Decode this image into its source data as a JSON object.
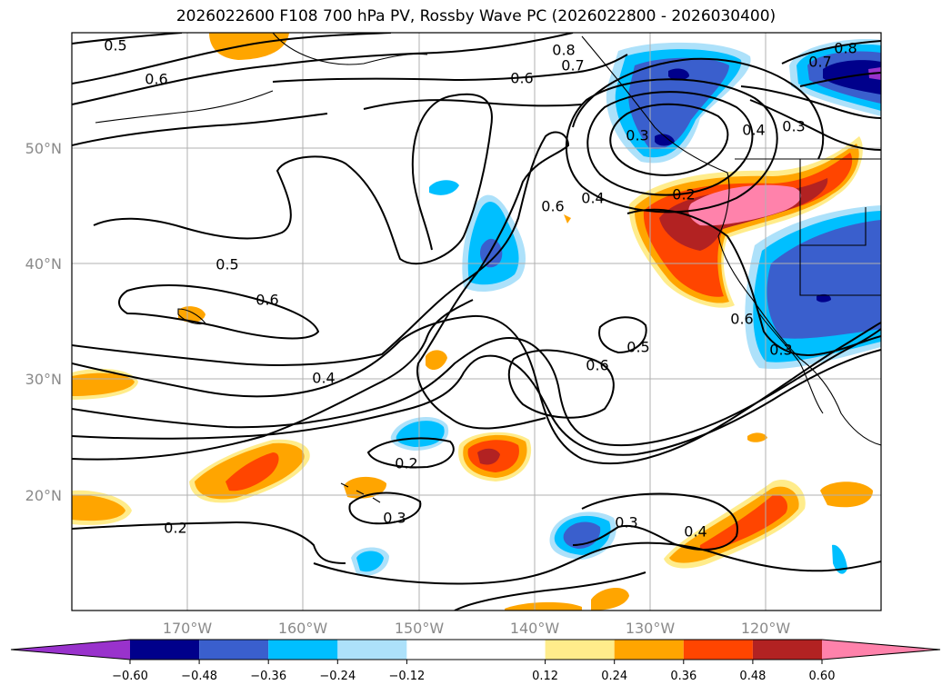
{
  "chart_data": {
    "type": "contour-map",
    "title": "2026022600 F108 700 hPa PV, Rossby Wave PC (2026022800 - 2026030400)",
    "xlabel": "",
    "ylabel": "",
    "lon_range": [
      -180,
      -110
    ],
    "lat_range": [
      10,
      60
    ],
    "x_ticks": [
      -170,
      -160,
      -150,
      -140,
      -130,
      -120
    ],
    "x_tick_labels": [
      "170°W",
      "160°W",
      "150°W",
      "140°W",
      "130°W",
      "120°W"
    ],
    "y_ticks": [
      20,
      30,
      40,
      50
    ],
    "y_tick_labels": [
      "20°N",
      "30°N",
      "40°N",
      "50°N"
    ],
    "grid": true,
    "colorbar": {
      "orientation": "horizontal",
      "extend": "both",
      "levels": [
        -0.72,
        -0.6,
        -0.48,
        -0.36,
        -0.24,
        -0.12,
        0.12,
        0.24,
        0.36,
        0.48,
        0.6,
        0.72
      ],
      "colors": [
        "#9932CC",
        "#00008B",
        "#3A5FCD",
        "#00BFFF",
        "#ADE1FA",
        "#FFFFFF",
        "#FFEC8B",
        "#FFA500",
        "#FF4500",
        "#B22222",
        "#FF82AB"
      ],
      "tick_values": [
        -0.6,
        -0.48,
        -0.36,
        -0.24,
        -0.12,
        0.12,
        0.24,
        0.36,
        0.48,
        0.6
      ],
      "tick_labels": [
        "−0.60",
        "−0.48",
        "−0.36",
        "−0.24",
        "−0.12",
        "0.12",
        "0.24",
        "0.36",
        "0.48",
        "0.60"
      ]
    },
    "contour_labels": [
      {
        "text": "0.5",
        "lon": -173.9,
        "lat": 59.1
      },
      {
        "text": "0.6",
        "lon": -170.8,
        "lat": 56.0
      },
      {
        "text": "0.6",
        "lon": -139.0,
        "lat": 56.1
      },
      {
        "text": "0.8",
        "lon": -133.0,
        "lat": 58.6
      },
      {
        "text": "0.7",
        "lon": -132.8,
        "lat": 57.7
      },
      {
        "text": "0.8",
        "lon": -113.2,
        "lat": 59.0
      },
      {
        "text": "0.7",
        "lon": -114.5,
        "lat": 57.0
      },
      {
        "text": "0.3",
        "lon": -131.1,
        "lat": 51.0
      },
      {
        "text": "0.4",
        "lon": -124.2,
        "lat": 51.5
      },
      {
        "text": "0.3",
        "lon": -117.0,
        "lat": 51.7
      },
      {
        "text": "0.2",
        "lon": -126.4,
        "lat": 45.8
      },
      {
        "text": "0.6",
        "lon": -137.8,
        "lat": 44.8
      },
      {
        "text": "0.4",
        "lon": -135.6,
        "lat": 45.1
      },
      {
        "text": "0.5",
        "lon": -164.2,
        "lat": 39.8
      },
      {
        "text": "0.6",
        "lon": -161.5,
        "lat": 36.3
      },
      {
        "text": "0.6",
        "lon": -122.0,
        "lat": 34.5
      },
      {
        "text": "0.3",
        "lon": -118.7,
        "lat": 32.3
      },
      {
        "text": "0.5",
        "lon": -131.1,
        "lat": 31.7
      },
      {
        "text": "0.6",
        "lon": -134.4,
        "lat": 30.9
      },
      {
        "text": "0.4",
        "lon": -157.5,
        "lat": 30.0
      },
      {
        "text": "0.2",
        "lon": -148.4,
        "lat": 22.7
      },
      {
        "text": "0.3",
        "lon": -148.8,
        "lat": 18.0
      },
      {
        "text": "0.3",
        "lon": -131.9,
        "lat": 17.6
      },
      {
        "text": "0.4",
        "lon": -126.2,
        "lat": 16.8
      },
      {
        "text": "0.2",
        "lon": -168.9,
        "lat": 17.1
      }
    ]
  }
}
